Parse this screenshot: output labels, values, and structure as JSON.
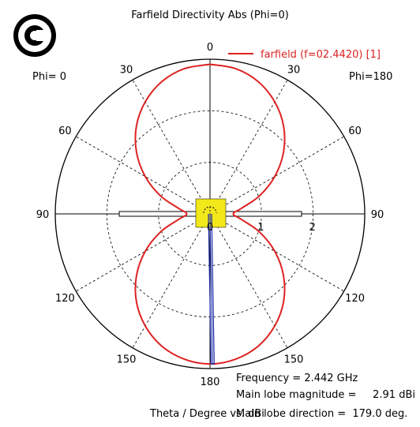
{
  "title": "Farfield Directivity Abs (Phi=0)",
  "logo_icon": "circled-c-logo-icon",
  "phi_left_label": "Phi=  0",
  "phi_right_label": "Phi=180",
  "legend": {
    "label": "farfield (f=02.4420) [1]",
    "color": "#dd2222"
  },
  "info": {
    "frequency": "Frequency = 2.442 GHz",
    "main_lobe_magnitude": "Main lobe magnitude =     2.91 dBi",
    "main_lobe_direction": "Main lobe direction =  179.0 deg.",
    "x_axis_label": "Theta / Degree vs. dBi"
  },
  "colors": {
    "pattern": "#dd2222",
    "main_lobe_marker": "#1a2aa8",
    "feed_highlight": "#f3e81a"
  },
  "chart_data": {
    "type": "polar-line",
    "title": "Farfield Directivity Abs (Phi=0)",
    "angle_unit": "deg",
    "angle_ticks_left": [
      "0",
      "30",
      "60",
      "90",
      "120",
      "150",
      "180"
    ],
    "angle_ticks_right": [
      "30",
      "60",
      "90",
      "120",
      "150"
    ],
    "radial_ticks": [
      "1",
      "2"
    ],
    "radial_grid": true,
    "angular_grid": true,
    "series": [
      {
        "name": "farfield (f=02.4420) [1]",
        "theta": [
          0,
          10,
          20,
          30,
          40,
          50,
          60,
          70,
          80,
          90,
          100,
          110,
          120,
          130,
          140,
          150,
          160,
          170,
          180
        ],
        "r": [
          2.9,
          2.86,
          2.73,
          2.51,
          2.22,
          1.86,
          1.45,
          1.02,
          0.62,
          0.45,
          0.62,
          1.02,
          1.45,
          1.86,
          2.22,
          2.51,
          2.73,
          2.86,
          2.91
        ]
      }
    ],
    "main_lobe": {
      "direction_deg": 179.0,
      "magnitude_dbi": 2.91
    }
  }
}
